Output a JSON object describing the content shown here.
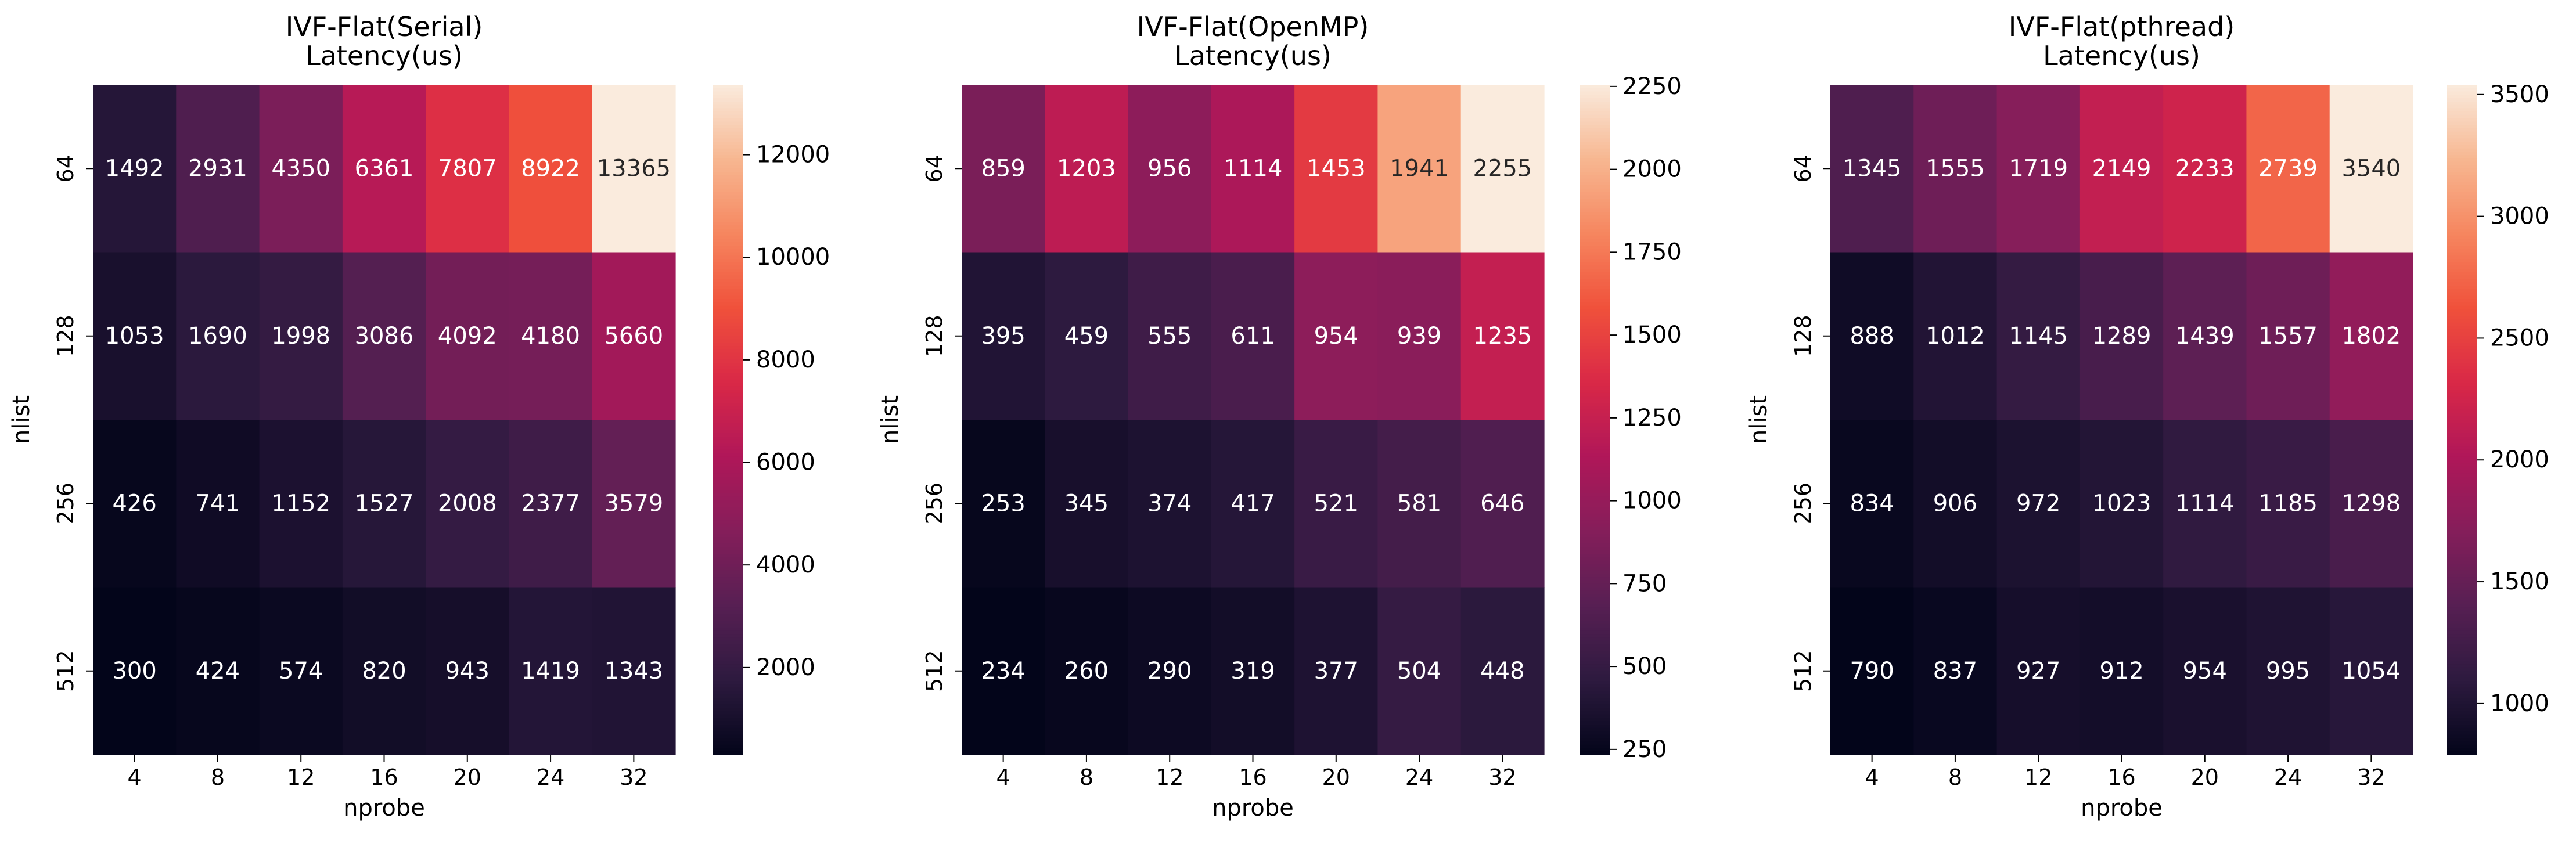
{
  "chart_data": [
    {
      "type": "heatmap",
      "title": [
        "IVF-Flat(Serial)",
        "Latency(us)"
      ],
      "xlabel": "nprobe",
      "ylabel": "nlist",
      "x": [
        "4",
        "8",
        "12",
        "16",
        "20",
        "24",
        "32"
      ],
      "y": [
        "64",
        "128",
        "256",
        "512"
      ],
      "values": [
        [
          1492,
          2931,
          4350,
          6361,
          7807,
          8922,
          13365
        ],
        [
          1053,
          1690,
          1998,
          3086,
          4092,
          4180,
          5660
        ],
        [
          426,
          741,
          1152,
          1527,
          2008,
          2377,
          3579
        ],
        [
          300,
          424,
          574,
          820,
          943,
          1419,
          1343
        ]
      ],
      "colorbar": {
        "range": [
          300,
          13365
        ],
        "ticks": [
          2000,
          4000,
          6000,
          8000,
          10000,
          12000
        ]
      }
    },
    {
      "type": "heatmap",
      "title": [
        "IVF-Flat(OpenMP)",
        "Latency(us)"
      ],
      "xlabel": "nprobe",
      "ylabel": "nlist",
      "x": [
        "4",
        "8",
        "12",
        "16",
        "20",
        "24",
        "32"
      ],
      "y": [
        "64",
        "128",
        "256",
        "512"
      ],
      "values": [
        [
          859,
          1203,
          956,
          1114,
          1453,
          1941,
          2255
        ],
        [
          395,
          459,
          555,
          611,
          954,
          939,
          1235
        ],
        [
          253,
          345,
          374,
          417,
          521,
          581,
          646
        ],
        [
          234,
          260,
          290,
          319,
          377,
          504,
          448
        ]
      ],
      "colorbar": {
        "range": [
          234,
          2255
        ],
        "ticks": [
          250,
          500,
          750,
          1000,
          1250,
          1500,
          1750,
          2000,
          2250
        ]
      }
    },
    {
      "type": "heatmap",
      "title": [
        "IVF-Flat(pthread)",
        "Latency(us)"
      ],
      "xlabel": "nprobe",
      "ylabel": "nlist",
      "x": [
        "4",
        "8",
        "12",
        "16",
        "20",
        "24",
        "32"
      ],
      "y": [
        "64",
        "128",
        "256",
        "512"
      ],
      "values": [
        [
          1345,
          1555,
          1719,
          2149,
          2233,
          2739,
          3540
        ],
        [
          888,
          1012,
          1145,
          1289,
          1439,
          1557,
          1802
        ],
        [
          834,
          906,
          972,
          1023,
          1114,
          1185,
          1298
        ],
        [
          790,
          837,
          927,
          912,
          954,
          995,
          1054
        ]
      ],
      "colorbar": {
        "range": [
          790,
          3540
        ],
        "ticks": [
          1000,
          1500,
          2000,
          2500,
          3000,
          3500
        ]
      }
    }
  ],
  "colormap": "rocket",
  "colormap_stops": [
    "#03051a",
    "#2d1a3f",
    "#571f53",
    "#841e5a",
    "#b01759",
    "#d92847",
    "#f0513b",
    "#f6865f",
    "#f7b791",
    "#faebdd"
  ]
}
